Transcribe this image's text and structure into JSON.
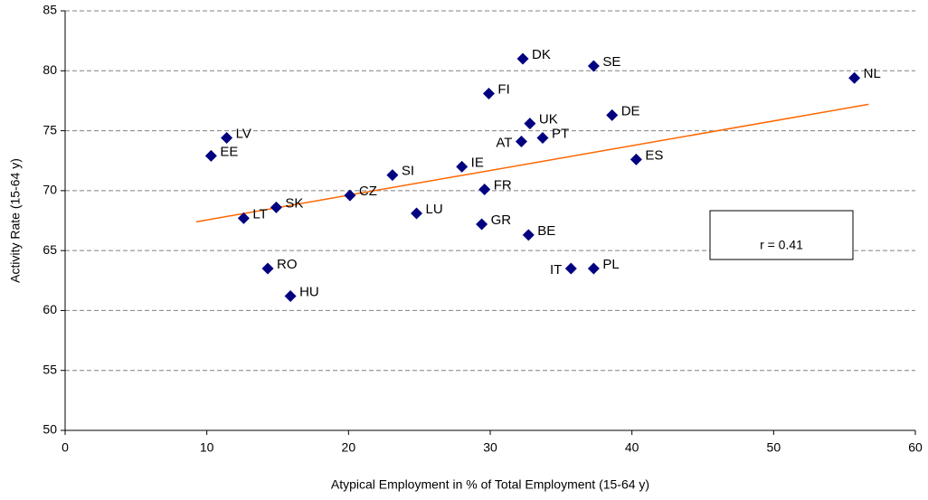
{
  "chart_data": {
    "type": "scatter",
    "xlabel": "Atypical Employment in % of Total Employment (15-64 y)",
    "ylabel": "Activity Rate (15-64 y)",
    "labels": [
      "DK",
      "SE",
      "NL",
      "FI",
      "DE",
      "UK",
      "AT",
      "PT",
      "LV",
      "EE",
      "ES",
      "IE",
      "SI",
      "FR",
      "CZ",
      "SK",
      "LU",
      "LT",
      "GR",
      "BE",
      "RO",
      "IT",
      "PL",
      "HU"
    ],
    "x": [
      32.3,
      37.3,
      55.7,
      29.9,
      38.6,
      32.8,
      32.2,
      33.7,
      11.4,
      10.3,
      40.3,
      28.0,
      23.1,
      29.6,
      20.1,
      14.9,
      24.8,
      12.6,
      29.4,
      32.7,
      14.3,
      35.7,
      37.3,
      15.9
    ],
    "y": [
      81.0,
      80.4,
      79.4,
      78.1,
      76.3,
      75.6,
      74.1,
      74.4,
      74.4,
      72.9,
      72.6,
      72.0,
      71.3,
      70.1,
      69.6,
      68.6,
      68.1,
      67.7,
      67.2,
      66.3,
      63.5,
      63.5,
      63.5,
      61.2
    ],
    "color": "#000080",
    "trendline": {
      "x": [
        9.25,
        56.7
      ],
      "y": [
        67.4,
        77.2
      ],
      "color": "#ff6600"
    },
    "annotation": "r = 0.41",
    "xlim": [
      0,
      60
    ],
    "xticks": [
      0,
      10,
      20,
      30,
      40,
      50,
      60
    ],
    "ylim": [
      50,
      85
    ],
    "yticks": [
      50,
      55,
      60,
      65,
      70,
      75,
      80,
      85
    ],
    "grid": true
  }
}
